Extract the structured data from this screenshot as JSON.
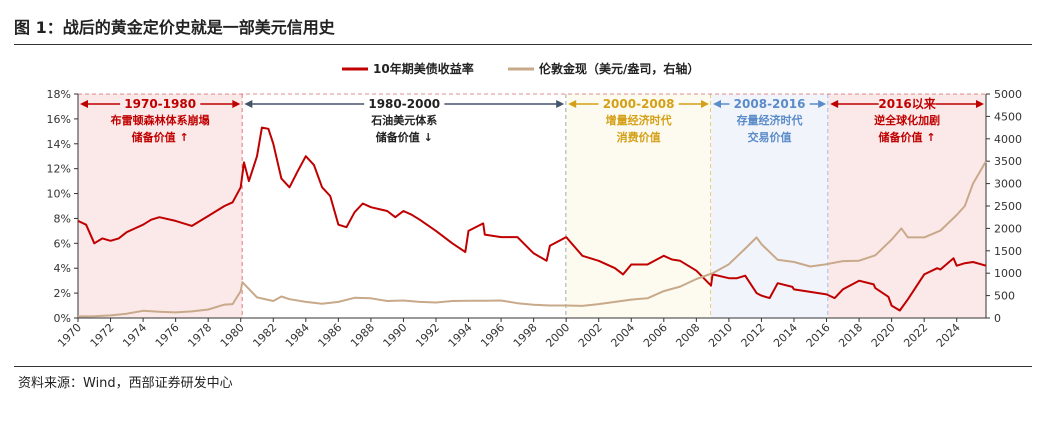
{
  "figure": {
    "title": "图 1：战后的黄金定价史就是一部美元信用史",
    "source": "资料来源：Wind，西部证券研发中心"
  },
  "chart_data": {
    "type": "line",
    "title": "图 1：战后的黄金定价史就是一部美元信用史",
    "legend_position": "top-center",
    "grid": false,
    "colors": {
      "yield": "#c00000",
      "gold": "#c8a98a"
    },
    "xlim": [
      1970,
      2025.8
    ],
    "x_ticks": [
      "1970",
      "1972",
      "1974",
      "1976",
      "1978",
      "1980",
      "1982",
      "1984",
      "1986",
      "1988",
      "1990",
      "1992",
      "1994",
      "1996",
      "1998",
      "2000",
      "2002",
      "2004",
      "2006",
      "2008",
      "2010",
      "2012",
      "2014",
      "2016",
      "2018",
      "2020",
      "2022",
      "2024"
    ],
    "y_left": {
      "ylim": [
        0,
        18
      ],
      "tick_labels": [
        "0%",
        "2%",
        "4%",
        "6%",
        "8%",
        "10%",
        "12%",
        "14%",
        "16%",
        "18%"
      ]
    },
    "y_right": {
      "ylim": [
        0,
        5000
      ],
      "tick_labels": [
        "0",
        "500",
        "1000",
        "1500",
        "2000",
        "2500",
        "3000",
        "3500",
        "4000",
        "4500",
        "5000"
      ]
    },
    "series": [
      {
        "name": "10年期美债收益率",
        "axis": "left",
        "x": [
          1970,
          1970.5,
          1971,
          1971.5,
          1972,
          1972.5,
          1973,
          1973.5,
          1974,
          1974.5,
          1975,
          1976,
          1977,
          1978,
          1978.5,
          1979,
          1979.5,
          1980,
          1980.2,
          1980.5,
          1981,
          1981.3,
          1981.7,
          1982,
          1982.5,
          1983,
          1983.5,
          1984,
          1984.5,
          1985,
          1985.5,
          1986,
          1986.5,
          1987,
          1987.5,
          1988,
          1989,
          1989.5,
          1990,
          1990.5,
          1991,
          1992,
          1993,
          1993.8,
          1994,
          1994.9,
          1995,
          1996,
          1997,
          1998,
          1998.8,
          1999,
          2000,
          2001,
          2002,
          2003,
          2003.5,
          2004,
          2005,
          2006,
          2006.5,
          2007,
          2008,
          2008.9,
          2009,
          2010,
          2010.5,
          2011,
          2011.7,
          2012,
          2012.5,
          2013,
          2013.9,
          2014,
          2015,
          2016,
          2016.5,
          2017,
          2018,
          2018.9,
          2019,
          2019.8,
          2020,
          2020.5,
          2021,
          2022,
          2022.8,
          2023,
          2023.8,
          2024,
          2024.5,
          2025,
          2025.8
        ],
        "values": [
          7.8,
          7.5,
          6.0,
          6.4,
          6.2,
          6.4,
          6.9,
          7.2,
          7.5,
          7.9,
          8.1,
          7.8,
          7.4,
          8.2,
          8.6,
          9.0,
          9.3,
          10.5,
          12.5,
          11.0,
          13.0,
          15.3,
          15.2,
          14.0,
          11.2,
          10.5,
          11.8,
          13.0,
          12.3,
          10.5,
          9.8,
          7.5,
          7.3,
          8.5,
          9.2,
          8.9,
          8.6,
          8.1,
          8.6,
          8.3,
          7.9,
          7.0,
          6.0,
          5.3,
          7.0,
          7.6,
          6.7,
          6.5,
          6.5,
          5.2,
          4.6,
          5.8,
          6.5,
          5.0,
          4.6,
          4.0,
          3.5,
          4.3,
          4.3,
          5.0,
          4.7,
          4.6,
          3.8,
          2.6,
          3.5,
          3.2,
          3.2,
          3.4,
          2.0,
          1.8,
          1.6,
          2.8,
          2.5,
          2.3,
          2.1,
          1.9,
          1.6,
          2.3,
          3.0,
          2.7,
          2.4,
          1.7,
          1.0,
          0.6,
          1.5,
          3.5,
          4.0,
          3.9,
          4.8,
          4.2,
          4.4,
          4.5,
          4.2
        ]
      },
      {
        "name": "伦敦金现（美元/盎司，右轴）",
        "axis": "right",
        "x": [
          1970,
          1971,
          1972,
          1973,
          1974,
          1975,
          1976,
          1977,
          1978,
          1979,
          1979.5,
          1980,
          1980.1,
          1980.5,
          1981,
          1982,
          1982.5,
          1983,
          1984,
          1985,
          1986,
          1987,
          1988,
          1989,
          1990,
          1991,
          1992,
          1993,
          1994,
          1995,
          1996,
          1997,
          1998,
          1999,
          2000,
          2001,
          2002,
          2003,
          2004,
          2005,
          2006,
          2007,
          2008,
          2009,
          2010,
          2011,
          2011.7,
          2012,
          2013,
          2014,
          2015,
          2016,
          2017,
          2018,
          2019,
          2020,
          2020.6,
          2021,
          2022,
          2023,
          2024,
          2024.5,
          2025,
          2025.8
        ],
        "values": [
          35,
          40,
          58,
          97,
          160,
          140,
          125,
          148,
          190,
          300,
          310,
          600,
          800,
          650,
          460,
          380,
          480,
          420,
          360,
          320,
          360,
          450,
          440,
          380,
          390,
          360,
          345,
          380,
          385,
          385,
          390,
          330,
          295,
          280,
          280,
          270,
          310,
          360,
          410,
          440,
          600,
          700,
          870,
          1000,
          1200,
          1550,
          1800,
          1650,
          1300,
          1250,
          1150,
          1200,
          1270,
          1280,
          1400,
          1750,
          2000,
          1800,
          1800,
          1950,
          2300,
          2500,
          3000,
          3500
        ]
      }
    ],
    "periods": [
      {
        "id": "p1970",
        "x_start": 1970,
        "x_end": 1980.1,
        "title": "1970-1980",
        "lines": [
          "布雷顿森林体系崩塌",
          "储备价值 ↑"
        ],
        "color": "#c00000",
        "fill": "#fbe9e9"
      },
      {
        "id": "p1980",
        "x_start": 1980.1,
        "x_end": 2000,
        "title": "1980-2000",
        "lines": [
          "石油美元体系",
          "储备价值 ↓"
        ],
        "color": "#44546a",
        "fill": "#ffffff"
      },
      {
        "id": "p2000",
        "x_start": 2000,
        "x_end": 2008.9,
        "title": "2000-2008",
        "lines": [
          "增量经济时代",
          "消费价值"
        ],
        "color": "#d4a017",
        "fill": "#fdfbf0"
      },
      {
        "id": "p2008",
        "x_start": 2008.9,
        "x_end": 2016.1,
        "title": "2008-2016",
        "lines": [
          "存量经济时代",
          "交易价值"
        ],
        "color": "#5b8bc9",
        "fill": "#f1f5fb"
      },
      {
        "id": "p2016",
        "x_start": 2016.1,
        "x_end": 2025.8,
        "title": "2016以来",
        "lines": [
          "逆全球化加剧",
          "储备价值 ↑"
        ],
        "color": "#c00000",
        "fill": "#fbe9e9"
      }
    ]
  }
}
